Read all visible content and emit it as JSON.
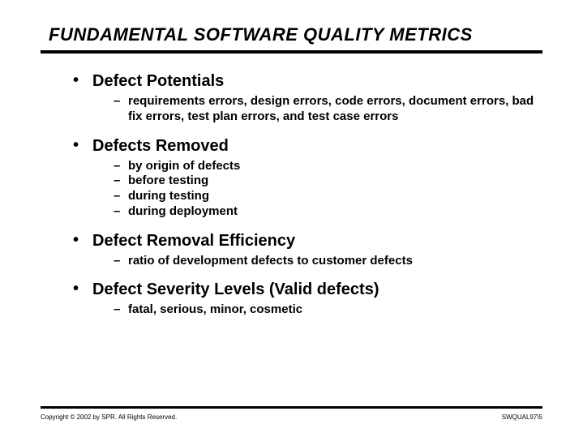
{
  "slide": {
    "title": "FUNDAMENTAL SOFTWARE QUALITY METRICS",
    "title_color": "#000000",
    "rule_color": "#000000",
    "background": "#ffffff",
    "sections": [
      {
        "heading": "Defect Potentials",
        "subitems": [
          "requirements errors, design errors, code errors, document errors, bad fix errors, test plan errors, and test case errors"
        ]
      },
      {
        "heading": "Defects Removed",
        "subitems": [
          "by origin of defects",
          "before testing",
          "during testing",
          "during deployment"
        ]
      },
      {
        "heading": "Defect Removal Efficiency",
        "subitems": [
          "ratio of development defects to customer defects"
        ]
      },
      {
        "heading": "Defect Severity Levels (Valid defects)",
        "subitems": [
          "fatal, serious, minor, cosmetic"
        ]
      }
    ]
  },
  "footer": {
    "copyright": "Copyright © 2002 by SPR. All Rights Reserved.",
    "pageref": "SWQUAL97\\5"
  }
}
